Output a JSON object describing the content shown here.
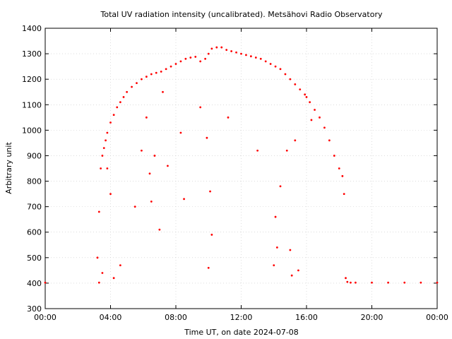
{
  "chart_data": {
    "type": "scatter",
    "title": "Total UV radiation intensity (uncalibrated). Metsähovi Radio Observatory",
    "xlabel": "Time UT, on date 2024-07-08",
    "ylabel": "Arbitrary unit",
    "xlim": [
      0,
      24
    ],
    "ylim": [
      300,
      1400
    ],
    "grid": true,
    "x_ticks": [
      {
        "value": 0,
        "label": "00:00"
      },
      {
        "value": 4,
        "label": "04:00"
      },
      {
        "value": 8,
        "label": "08:00"
      },
      {
        "value": 12,
        "label": "12:00"
      },
      {
        "value": 16,
        "label": "16:00"
      },
      {
        "value": 20,
        "label": "20:00"
      },
      {
        "value": 24,
        "label": "00:00"
      }
    ],
    "y_ticks": [
      300,
      400,
      500,
      600,
      700,
      800,
      900,
      1000,
      1100,
      1200,
      1300,
      1400
    ],
    "marker_color": "#ff0000",
    "series": [
      {
        "name": "",
        "x": [
          0.0,
          3.3,
          3.4,
          3.5,
          3.6,
          3.7,
          3.8,
          4.0,
          4.2,
          4.4,
          4.6,
          4.8,
          5.0,
          5.3,
          5.6,
          5.9,
          6.2,
          6.5,
          6.8,
          7.1,
          7.4,
          7.7,
          8.0,
          8.3,
          8.6,
          8.9,
          9.2,
          9.5,
          9.8,
          10.0,
          10.2,
          10.5,
          10.8,
          11.1,
          11.4,
          11.7,
          12.0,
          12.3,
          12.6,
          12.9,
          13.2,
          13.5,
          13.8,
          14.1,
          14.4,
          14.7,
          15.0,
          15.3,
          15.6,
          15.9,
          16.2,
          16.5,
          16.8,
          17.1,
          17.4,
          17.7,
          18.0,
          18.2,
          18.3,
          18.4,
          18.5,
          18.7,
          19.0,
          20.0,
          21.0,
          22.0,
          23.0,
          24.0
        ],
        "values": [
          402,
          402,
          850,
          900,
          930,
          960,
          990,
          1030,
          1060,
          1090,
          1110,
          1130,
          1150,
          1170,
          1185,
          1200,
          1210,
          1220,
          1225,
          1230,
          1240,
          1250,
          1260,
          1270,
          1280,
          1285,
          1288,
          1270,
          1280,
          1300,
          1320,
          1325,
          1325,
          1315,
          1310,
          1305,
          1300,
          1295,
          1290,
          1285,
          1280,
          1270,
          1260,
          1250,
          1240,
          1220,
          1200,
          1180,
          1160,
          1140,
          1110,
          1080,
          1050,
          1010,
          960,
          900,
          850,
          820,
          750,
          420,
          405,
          402,
          402,
          402,
          402,
          402,
          402,
          402
        ]
      },
      {
        "name": "",
        "x": [
          3.2,
          3.3,
          3.5,
          3.8,
          4.0,
          4.2,
          4.6,
          5.5,
          5.9,
          6.2,
          6.4,
          6.5,
          6.7,
          7.0,
          7.2,
          7.5,
          8.3,
          8.5,
          9.5,
          9.9,
          10.0,
          10.1,
          10.2,
          11.2,
          13.0,
          14.0,
          14.1,
          14.2,
          14.4,
          14.8,
          15.0,
          15.1,
          15.3,
          15.5,
          16.0,
          16.3
        ],
        "values": [
          500,
          680,
          440,
          850,
          750,
          420,
          470,
          700,
          920,
          1050,
          830,
          720,
          900,
          610,
          1150,
          860,
          990,
          730,
          1090,
          970,
          460,
          760,
          590,
          1050,
          920,
          470,
          660,
          540,
          780,
          920,
          530,
          430,
          960,
          450,
          1130,
          1040
        ]
      }
    ]
  }
}
